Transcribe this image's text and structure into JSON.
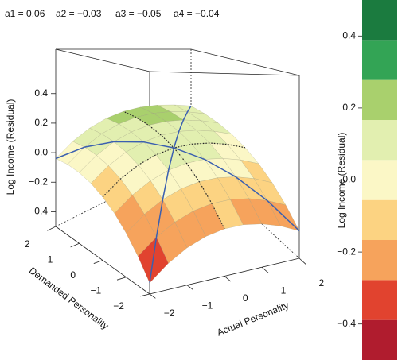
{
  "chart_data": {
    "type": "surface",
    "annotations": [
      "a1 = 0.06",
      "a2 = −0.03",
      "a3 = −0.05",
      "a4 = −0.04"
    ],
    "xlabel": "Actual Personality",
    "ylabel": "Demanded Personality",
    "zlabel": "Log Income (Residual)",
    "x": [
      -2,
      -1.5,
      -1,
      -0.5,
      0,
      0.5,
      1,
      1.5,
      2
    ],
    "y": [
      -2,
      -1.5,
      -1,
      -0.5,
      0,
      0.5,
      1,
      1.5,
      2
    ],
    "z": [
      [
        -0.44,
        -0.355,
        -0.29,
        -0.245,
        -0.22,
        -0.215,
        -0.23,
        -0.265,
        -0.32
      ],
      [
        -0.338,
        -0.253,
        -0.188,
        -0.143,
        -0.118,
        -0.113,
        -0.128,
        -0.163,
        -0.218
      ],
      [
        -0.25,
        -0.165,
        -0.1,
        -0.055,
        -0.03,
        -0.025,
        -0.04,
        -0.075,
        -0.13
      ],
      [
        -0.177,
        -0.092,
        -0.027,
        0.018,
        0.043,
        0.048,
        0.033,
        -0.002,
        -0.057
      ],
      [
        -0.12,
        -0.035,
        0.03,
        0.075,
        0.1,
        0.105,
        0.09,
        0.055,
        0
      ],
      [
        -0.077,
        0.008,
        0.073,
        0.118,
        0.143,
        0.148,
        0.133,
        0.098,
        0.043
      ],
      [
        -0.05,
        0.035,
        0.1,
        0.145,
        0.17,
        0.175,
        0.16,
        0.125,
        0.07
      ],
      [
        -0.037,
        0.048,
        0.113,
        0.158,
        0.183,
        0.188,
        0.173,
        0.138,
        0.083
      ],
      [
        -0.04,
        0.045,
        0.11,
        0.155,
        0.18,
        0.185,
        0.17,
        0.135,
        0.08
      ]
    ],
    "xlim": [
      -2,
      2
    ],
    "ylim": [
      -2,
      2
    ],
    "zlim": [
      -0.5,
      0.7
    ],
    "xticks": [
      {
        "value": -2,
        "label": "−2"
      },
      {
        "value": -1,
        "label": "−1"
      },
      0,
      1,
      2
    ],
    "yticks": [
      {
        "value": -2,
        "label": "−2"
      },
      {
        "value": -1,
        "label": "−1"
      },
      0,
      1,
      2
    ],
    "zticks": [
      {
        "value": -0.4,
        "label": "−0.4"
      },
      {
        "value": -0.2,
        "label": "−0.2"
      },
      {
        "value": 0,
        "label": "0.0"
      },
      0.2,
      0.4
    ],
    "congruence_line_color": "#3a5fb0",
    "colorbar": {
      "label": "Log Income (Residual)",
      "lim": [
        -0.5,
        0.5
      ],
      "ticks": [
        {
          "value": -0.4,
          "label": "−0.4"
        },
        {
          "value": -0.2,
          "label": "−0.2"
        },
        {
          "value": 0,
          "label": "0.0"
        },
        0.2,
        0.4
      ],
      "colors": [
        "#b01c2e",
        "#e1432f",
        "#f6a35c",
        "#fcd382",
        "#fbf7c6",
        "#e2efb0",
        "#a9d06d",
        "#33a455",
        "#1b7b3f"
      ]
    }
  }
}
